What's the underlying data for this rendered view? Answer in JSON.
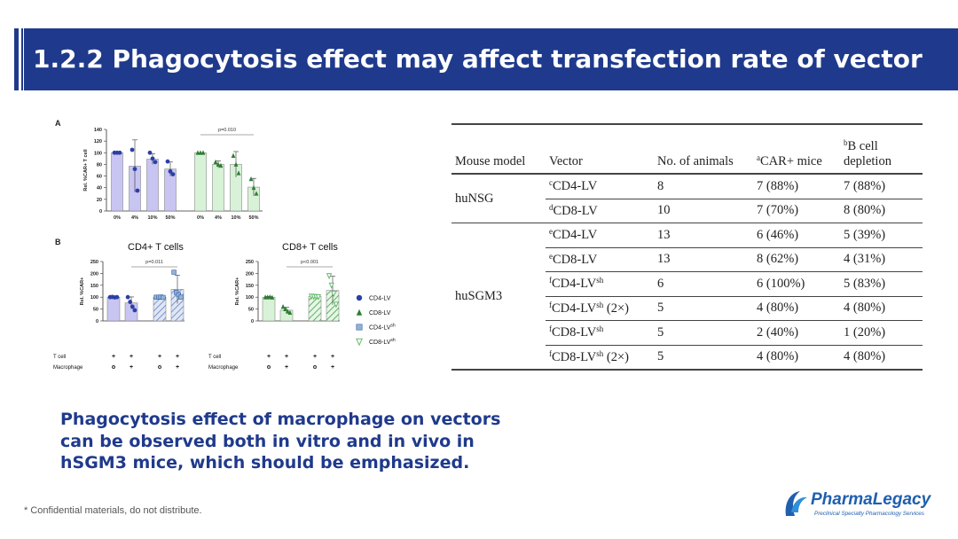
{
  "header": {
    "title": "1.2.2 Phagocytosis effect may affect transfection rate of vector"
  },
  "figure": {
    "panel_a": {
      "label": "A",
      "ylabel": "Rel. %CAR+ T cell",
      "y_ticks": [
        "0",
        "20",
        "40",
        "60",
        "80",
        "100",
        "120",
        "140"
      ],
      "groups": [
        {
          "bars": [
            {
              "category": "0%",
              "value": 100,
              "color": "#c9c5f2",
              "dot": "#2b3fa6",
              "points": [
                100,
                100,
                100
              ],
              "err": 0
            },
            {
              "category": "4%",
              "value": 77,
              "color": "#c9c5f2",
              "dot": "#2b3fa6",
              "points": [
                105,
                72,
                35
              ],
              "err": 45
            },
            {
              "category": "10%",
              "value": 89,
              "color": "#c9c5f2",
              "dot": "#2b3fa6",
              "points": [
                100,
                90,
                84
              ],
              "err": 9
            },
            {
              "category": "50%",
              "value": 72,
              "color": "#c9c5f2",
              "dot": "#2b3fa6",
              "points": [
                85,
                68,
                63
              ],
              "err": 12
            }
          ]
        },
        {
          "bars": [
            {
              "category": "0%",
              "value": 100,
              "color": "#d8f2d8",
              "dot": "#2e7d32",
              "points": [
                100,
                100,
                100
              ],
              "err": 0
            },
            {
              "category": "4%",
              "value": 80,
              "color": "#d8f2d8",
              "dot": "#2e7d32",
              "points": [
                84,
                80,
                78
              ],
              "err": 6
            },
            {
              "category": "10%",
              "value": 80,
              "color": "#d8f2d8",
              "dot": "#2e7d32",
              "points": [
                95,
                80,
                65
              ],
              "err": 22
            },
            {
              "category": "50%",
              "value": 41,
              "color": "#d8f2d8",
              "dot": "#2e7d32",
              "points": [
                55,
                40,
                30
              ],
              "err": 15
            }
          ]
        }
      ],
      "annotation": "p=0.010"
    },
    "panel_b": {
      "label": "B",
      "charts": [
        {
          "title": "CD4+  T cells",
          "ylabel": "Rel. %CAR+",
          "y_ticks": [
            "0",
            "50",
            "100",
            "150",
            "200",
            "250"
          ],
          "annotation": "p=0.011",
          "bars": [
            {
              "value": 100,
              "fill": "#c9c5f2",
              "hatch": false,
              "marker": "circle",
              "mcolor": "#2b3fa6",
              "points": [
                100,
                101,
                99,
                100
              ],
              "err": 3
            },
            {
              "value": 76,
              "fill": "#c9c5f2",
              "hatch": false,
              "marker": "circle",
              "mcolor": "#2b3fa6",
              "points": [
                100,
                80,
                60,
                45
              ],
              "err": 25
            },
            {
              "value": 100,
              "fill": "#c9c5f2",
              "hatch": true,
              "marker": "square",
              "mcolor": "#8fb3d9",
              "points": [
                100,
                100,
                101,
                99
              ],
              "err": 2
            },
            {
              "value": 133,
              "fill": "#c9c5f2",
              "hatch": true,
              "marker": "square",
              "mcolor": "#8fb3d9",
              "points": [
                205,
                120,
                110,
                100
              ],
              "err": 60
            }
          ]
        },
        {
          "title": "CD8+  T cells",
          "ylabel": "Rel. %CAR+",
          "y_ticks": [
            "0",
            "50",
            "100",
            "150",
            "200",
            "250"
          ],
          "annotation": "p<0.001",
          "bars": [
            {
              "value": 100,
              "fill": "#d8f2d8",
              "hatch": false,
              "marker": "triangle",
              "mcolor": "#2e7d32",
              "points": [
                100,
                100,
                101,
                99
              ],
              "err": 3
            },
            {
              "value": 45,
              "fill": "#d8f2d8",
              "hatch": false,
              "marker": "triangle",
              "mcolor": "#2e7d32",
              "points": [
                60,
                50,
                40,
                35
              ],
              "err": 12
            },
            {
              "value": 103,
              "fill": "#d8f2d8",
              "hatch": true,
              "marker": "vtri",
              "mcolor": "#66bb6a",
              "points": [
                104,
                103,
                102,
                101
              ],
              "err": 3
            },
            {
              "value": 128,
              "fill": "#d8f2d8",
              "hatch": true,
              "marker": "vtri",
              "mcolor": "#66bb6a",
              "points": [
                190,
                150,
                115,
                70
              ],
              "err": 60
            }
          ]
        }
      ],
      "row_labels": [
        "T cell",
        "Macrophage"
      ],
      "tcell_marks": [
        "+",
        "+",
        "+",
        "+"
      ],
      "macrophage_marks": [
        "o",
        "+",
        "o",
        "+"
      ],
      "legend": [
        {
          "label": "CD4-LV",
          "marker": "circle",
          "color": "#2b3fa6"
        },
        {
          "label": "CD8-LV",
          "marker": "triangle",
          "color": "#2e7d32"
        },
        {
          "label": "CD4-LV",
          "sup": "sh",
          "marker": "square",
          "color": "#8fb3d9"
        },
        {
          "label": "CD8-LV",
          "sup": "sh",
          "marker": "vtri",
          "color": "#66bb6a"
        }
      ]
    }
  },
  "table": {
    "headers": {
      "mouse_model": "Mouse model",
      "vector": "Vector",
      "animals": "No. of animals",
      "car_sup": "a",
      "car": "CAR+ mice",
      "bcell_sup": "b",
      "bcell_line1": "B cell",
      "bcell_line2": "depletion"
    },
    "groups": {
      "hunsg": "huNSG",
      "husgm3": "huSGM3"
    },
    "rows": [
      {
        "vsup": "c",
        "vector": "CD4-LV",
        "vsup2": "",
        "suffix": "",
        "animals": "8",
        "car": "7 (88%)",
        "bcell": "7 (88%)"
      },
      {
        "vsup": "d",
        "vector": "CD8-LV",
        "vsup2": "",
        "suffix": "",
        "animals": "10",
        "car": "7 (70%)",
        "bcell": "8 (80%)"
      },
      {
        "vsup": "e",
        "vector": "CD4-LV",
        "vsup2": "",
        "suffix": "",
        "animals": "13",
        "car": "6 (46%)",
        "bcell": "5 (39%)"
      },
      {
        "vsup": "e",
        "vector": "CD8-LV",
        "vsup2": "",
        "suffix": "",
        "animals": "13",
        "car": "8 (62%)",
        "bcell": "4 (31%)"
      },
      {
        "vsup": "f",
        "vector": "CD4-LV",
        "vsup2": "sh",
        "suffix": "",
        "animals": "6",
        "car": "6 (100%)",
        "bcell": "5 (83%)"
      },
      {
        "vsup": "f",
        "vector": "CD4-LV",
        "vsup2": "sh",
        "suffix": " (2×)",
        "animals": "5",
        "car": "4 (80%)",
        "bcell": "4 (80%)"
      },
      {
        "vsup": "f",
        "vector": "CD8-LV",
        "vsup2": "sh",
        "suffix": "",
        "animals": "5",
        "car": "2 (40%)",
        "bcell": "1 (20%)"
      },
      {
        "vsup": "f",
        "vector": "CD8-LV",
        "vsup2": "sh",
        "suffix": " (2×)",
        "animals": "5",
        "car": "4 (80%)",
        "bcell": "4 (80%)"
      }
    ]
  },
  "summary": "Phagocytosis effect of macrophage on vectors can be observed both in vitro and in vivo in hSGM3 mice, which should be emphasized.",
  "footer": "* Confidential materials, do not distribute.",
  "logo": {
    "name": "PharmaLegacy",
    "tagline": "Preclinical Specialty Pharmacology Services"
  },
  "colors": {
    "brand_blue": "#1f3a8c",
    "cd4_fill": "#c9c5f2",
    "cd8_fill": "#d8f2d8"
  }
}
